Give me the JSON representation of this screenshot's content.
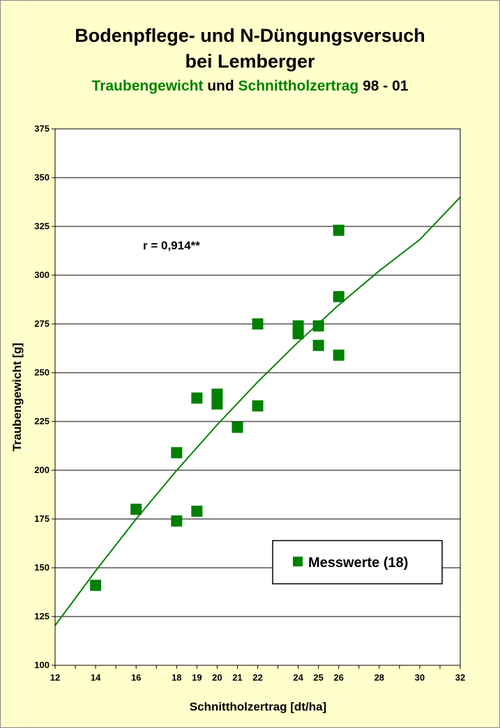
{
  "title": {
    "line1": "Bodenpflege- und N-Düngungsversuch",
    "line2": "bei Lemberger",
    "sub_a": "Traubengewicht",
    "sub_b": " und ",
    "sub_c": "Schnittholzertrag",
    "sub_d": " 98 - 01"
  },
  "colors": {
    "background": "#FFFFCC",
    "series": "#008000",
    "plot": "#FFFFFF"
  },
  "chart_data": {
    "type": "scatter",
    "xlabel": "Schnittholzertrag  [dt/ha]",
    "ylabel": "Traubengewicht [g]",
    "xlim": [
      12,
      32
    ],
    "ylim": [
      100,
      375
    ],
    "xticks": [
      12,
      14,
      16,
      18,
      19,
      20,
      21,
      22,
      24,
      25,
      26,
      28,
      30,
      32
    ],
    "yticks": [
      100,
      125,
      150,
      175,
      200,
      225,
      250,
      275,
      300,
      325,
      350,
      375
    ],
    "grid": "horizontal",
    "annotation": "r = 0,914**",
    "legend": {
      "label": "Messwerte (18)",
      "placement": "bottom-right"
    },
    "series": [
      {
        "name": "Messwerte (18)",
        "points": [
          [
            14,
            141
          ],
          [
            16,
            180
          ],
          [
            18,
            174
          ],
          [
            18,
            209
          ],
          [
            19,
            179
          ],
          [
            19,
            237
          ],
          [
            20,
            239
          ],
          [
            20,
            234
          ],
          [
            21,
            222
          ],
          [
            22,
            275
          ],
          [
            22,
            233
          ],
          [
            24,
            274
          ],
          [
            24,
            270
          ],
          [
            25,
            274
          ],
          [
            25,
            264
          ],
          [
            26,
            289
          ],
          [
            26,
            323
          ],
          [
            26,
            259
          ]
        ]
      }
    ],
    "trendline": {
      "type": "polynomial",
      "points": [
        [
          12,
          120.4
        ],
        [
          14,
          148.4
        ],
        [
          16,
          175.0
        ],
        [
          18,
          199.9
        ],
        [
          20,
          223.3
        ],
        [
          22,
          245.3
        ],
        [
          24,
          265.7
        ],
        [
          26,
          284.7
        ],
        [
          28,
          302.2
        ],
        [
          30,
          318.2
        ],
        [
          32,
          340.0
        ]
      ]
    }
  }
}
